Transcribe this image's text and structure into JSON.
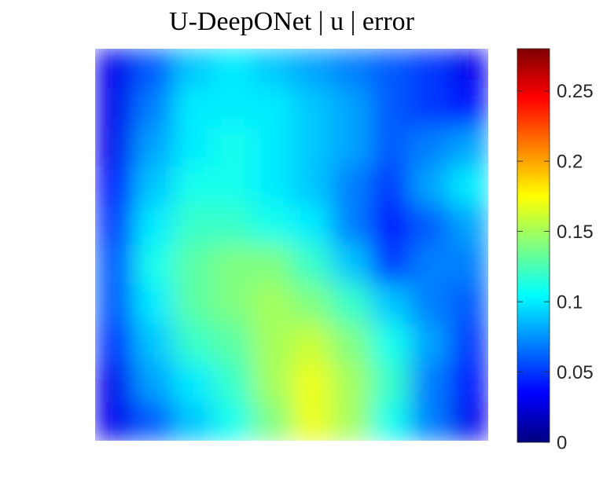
{
  "chart_data": {
    "type": "heatmap",
    "title": "U-DeepONet | u | error",
    "colormap": "jet",
    "values": [
      [
        0.03,
        0.06,
        0.09,
        0.1,
        0.09,
        0.08,
        0.07,
        0.06,
        0.05,
        0.03
      ],
      [
        0.03,
        0.07,
        0.1,
        0.1,
        0.1,
        0.09,
        0.08,
        0.06,
        0.05,
        0.04
      ],
      [
        0.03,
        0.08,
        0.1,
        0.11,
        0.1,
        0.09,
        0.08,
        0.06,
        0.07,
        0.08
      ],
      [
        0.04,
        0.09,
        0.11,
        0.11,
        0.1,
        0.09,
        0.07,
        0.05,
        0.08,
        0.1
      ],
      [
        0.05,
        0.1,
        0.12,
        0.12,
        0.11,
        0.1,
        0.07,
        0.04,
        0.06,
        0.08
      ],
      [
        0.06,
        0.11,
        0.13,
        0.14,
        0.14,
        0.12,
        0.09,
        0.05,
        0.07,
        0.07
      ],
      [
        0.06,
        0.1,
        0.13,
        0.14,
        0.15,
        0.14,
        0.12,
        0.09,
        0.07,
        0.06
      ],
      [
        0.05,
        0.09,
        0.12,
        0.13,
        0.15,
        0.16,
        0.14,
        0.11,
        0.08,
        0.05
      ],
      [
        0.03,
        0.08,
        0.1,
        0.12,
        0.15,
        0.17,
        0.15,
        0.12,
        0.07,
        0.04
      ],
      [
        0.03,
        0.06,
        0.09,
        0.11,
        0.14,
        0.17,
        0.15,
        0.11,
        0.07,
        0.03
      ]
    ],
    "clim": [
      0,
      0.28
    ],
    "colorbar_ticks": [
      0,
      0.05,
      0.1,
      0.15,
      0.2,
      0.25
    ]
  }
}
